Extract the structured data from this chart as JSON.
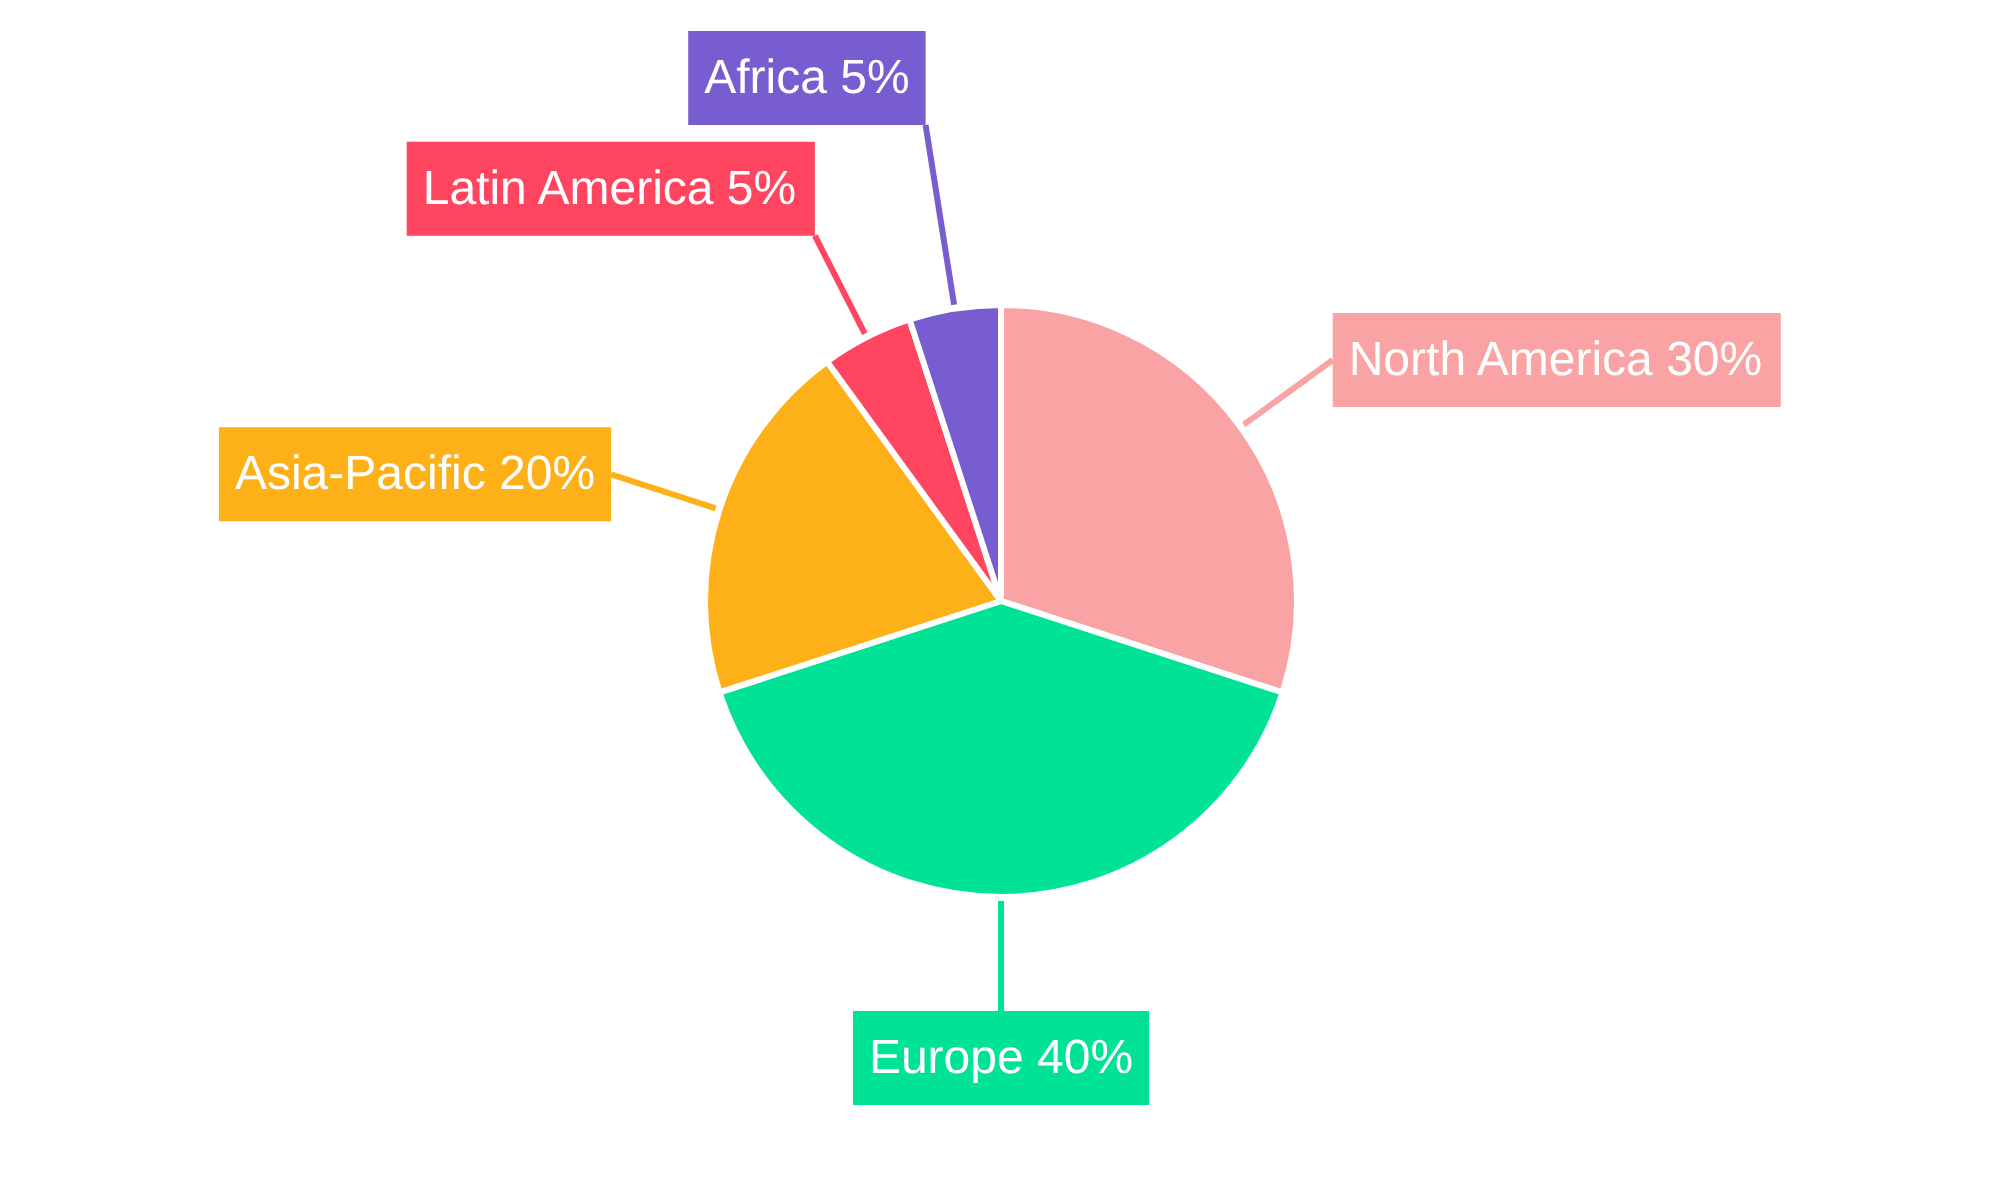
{
  "chart_data": {
    "type": "pie",
    "categories": [
      "North America",
      "Europe",
      "Asia-Pacific",
      "Latin America",
      "Africa"
    ],
    "values": [
      30,
      40,
      20,
      5,
      5
    ],
    "colors": [
      "#f9a3a4",
      "#00e396",
      "#feb019",
      "#ff4560",
      "#775dd0"
    ],
    "value_labels": [
      "30%",
      "40%",
      "20%",
      "5%",
      "5%"
    ]
  }
}
